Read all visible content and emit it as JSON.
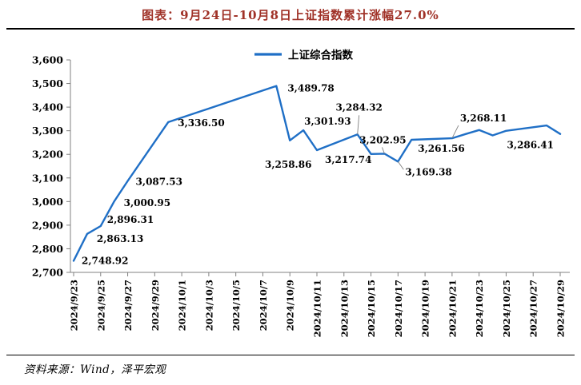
{
  "page": {
    "title": "图表：9月24日-10月8日上证指数累计涨幅27.0%",
    "source": "资料来源：Wind，泽平宏观"
  },
  "chart_data": {
    "type": "line",
    "title": "图表：9月24日-10月8日上证指数累计涨幅27.0%",
    "legend": [
      "上证综合指数"
    ],
    "legend_position": "top-center",
    "grid": false,
    "ylim": [
      2700,
      3600
    ],
    "ytick_step": 100,
    "yticklabels": [
      "2,700",
      "2,800",
      "2,900",
      "3,000",
      "3,100",
      "3,200",
      "3,300",
      "3,400",
      "3,500",
      "3,600"
    ],
    "xticklabels": [
      "2024/9/23",
      "2024/9/25",
      "2024/9/27",
      "2024/9/29",
      "2024/10/1",
      "2024/10/3",
      "2024/10/5",
      "2024/10/7",
      "2024/10/9",
      "2024/10/11",
      "2024/10/13",
      "2024/10/15",
      "2024/10/17",
      "2024/10/19",
      "2024/10/21",
      "2024/10/23",
      "2024/10/25",
      "2024/10/27",
      "2024/10/29",
      ""
    ],
    "colors": {
      "line": "#1F6FC6",
      "title": "#A03228",
      "axis": "#808080",
      "text": "#000000",
      "leader": "#7F7F7F"
    },
    "series": [
      {
        "name": "上证综合指数",
        "points": [
          {
            "date": "2024/9/23",
            "day": 0,
            "value": 2748.92,
            "label": "2,748.92",
            "anchor": "start",
            "dx": 10,
            "dy": 4
          },
          {
            "date": "2024/9/24",
            "day": 1,
            "value": 2863.13,
            "label": "2,863.13",
            "anchor": "start",
            "dx": 12,
            "dy": 10
          },
          {
            "date": "2024/9/25",
            "day": 2,
            "value": 2896.31,
            "label": "2,896.31",
            "anchor": "start",
            "dx": 8,
            "dy": -4
          },
          {
            "date": "2024/9/26",
            "day": 3,
            "value": 3000.95,
            "label": "3,000.95",
            "anchor": "start",
            "dx": 12,
            "dy": 6
          },
          {
            "date": "2024/9/27",
            "day": 4,
            "value": 3087.53,
            "label": "3,087.53",
            "anchor": "start",
            "dx": 10,
            "dy": 5
          },
          {
            "date": "2024/9/30",
            "day": 7,
            "value": 3336.5,
            "label": "3,336.50",
            "anchor": "start",
            "dx": 12,
            "dy": 5
          },
          {
            "date": "2024/10/8",
            "day": 15,
            "value": 3489.78,
            "label": "3,489.78",
            "anchor": "start",
            "dx": 14,
            "dy": 7
          },
          {
            "date": "2024/10/9",
            "day": 16,
            "value": 3258.86,
            "label": "3,258.86",
            "anchor": "middle",
            "dx": -2,
            "dy": 34
          },
          {
            "date": "2024/10/10",
            "day": 17,
            "value": 3301.93,
            "label": "3,301.93",
            "anchor": "start",
            "dx": 1,
            "dy": -7
          },
          {
            "date": "2024/10/11",
            "day": 18,
            "value": 3217.74,
            "label": "3,217.74",
            "anchor": "start",
            "dx": 10,
            "dy": 16
          },
          {
            "date": "2024/10/14",
            "day": 21,
            "value": 3284.32,
            "label": "3,284.32",
            "anchor": "middle",
            "dx": 2,
            "dy": -30,
            "leader": [
              2,
              -24
            ]
          },
          {
            "date": "2024/10/15",
            "day": 22,
            "value": 3201.29
          },
          {
            "date": "2024/10/16",
            "day": 23,
            "value": 3202.95,
            "label": "3,202.95",
            "anchor": "middle",
            "dx": -2,
            "dy": -13,
            "leader": [
              -3,
              -8
            ]
          },
          {
            "date": "2024/10/17",
            "day": 24,
            "value": 3169.38,
            "label": "3,169.38",
            "anchor": "start",
            "dx": 9,
            "dy": 17,
            "leader": [
              7,
              10
            ]
          },
          {
            "date": "2024/10/18",
            "day": 25,
            "value": 3261.56,
            "label": "3,261.56",
            "anchor": "start",
            "dx": 8,
            "dy": 15
          },
          {
            "date": "2024/10/21",
            "day": 28,
            "value": 3268.11,
            "label": "3,268.11",
            "anchor": "start",
            "dx": 10,
            "dy": -21,
            "leader": [
              8,
              -16
            ]
          },
          {
            "date": "2024/10/22",
            "day": 29,
            "value": 3285.87
          },
          {
            "date": "2024/10/23",
            "day": 30,
            "value": 3302.8
          },
          {
            "date": "2024/10/24",
            "day": 31,
            "value": 3280.26
          },
          {
            "date": "2024/10/25",
            "day": 32,
            "value": 3299.7
          },
          {
            "date": "2024/10/28",
            "day": 35,
            "value": 3322.2
          },
          {
            "date": "2024/10/29",
            "day": 36,
            "value": 3286.41,
            "label": "3,286.41",
            "anchor": "end",
            "dx": -8,
            "dy": 18
          }
        ]
      }
    ]
  }
}
